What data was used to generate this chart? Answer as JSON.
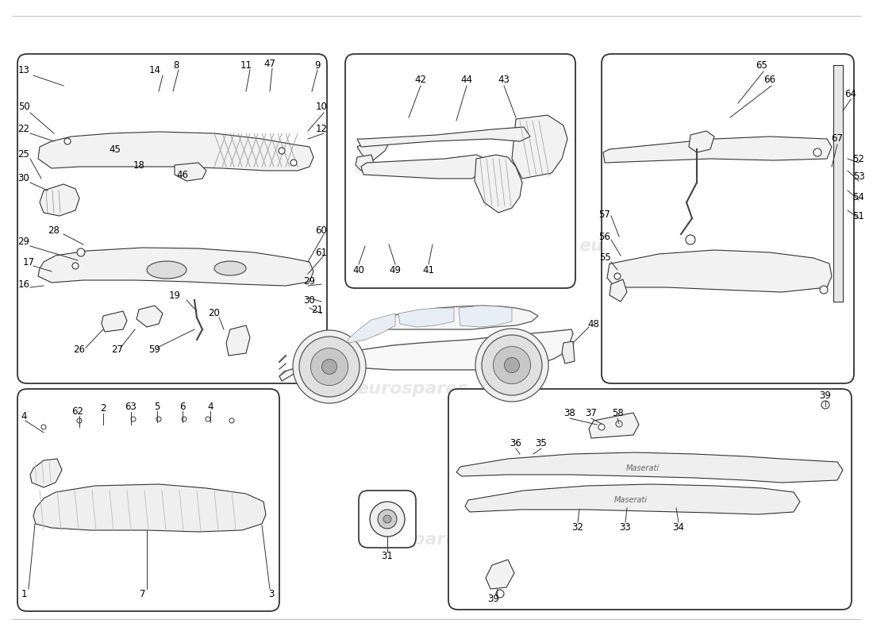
{
  "bg_color": "#ffffff",
  "line_color": "#333333",
  "fill_color": "#f2f2f2",
  "text_color": "#000000",
  "fs": 8.5,
  "fs_title": 9,
  "watermark": "eurospares"
}
